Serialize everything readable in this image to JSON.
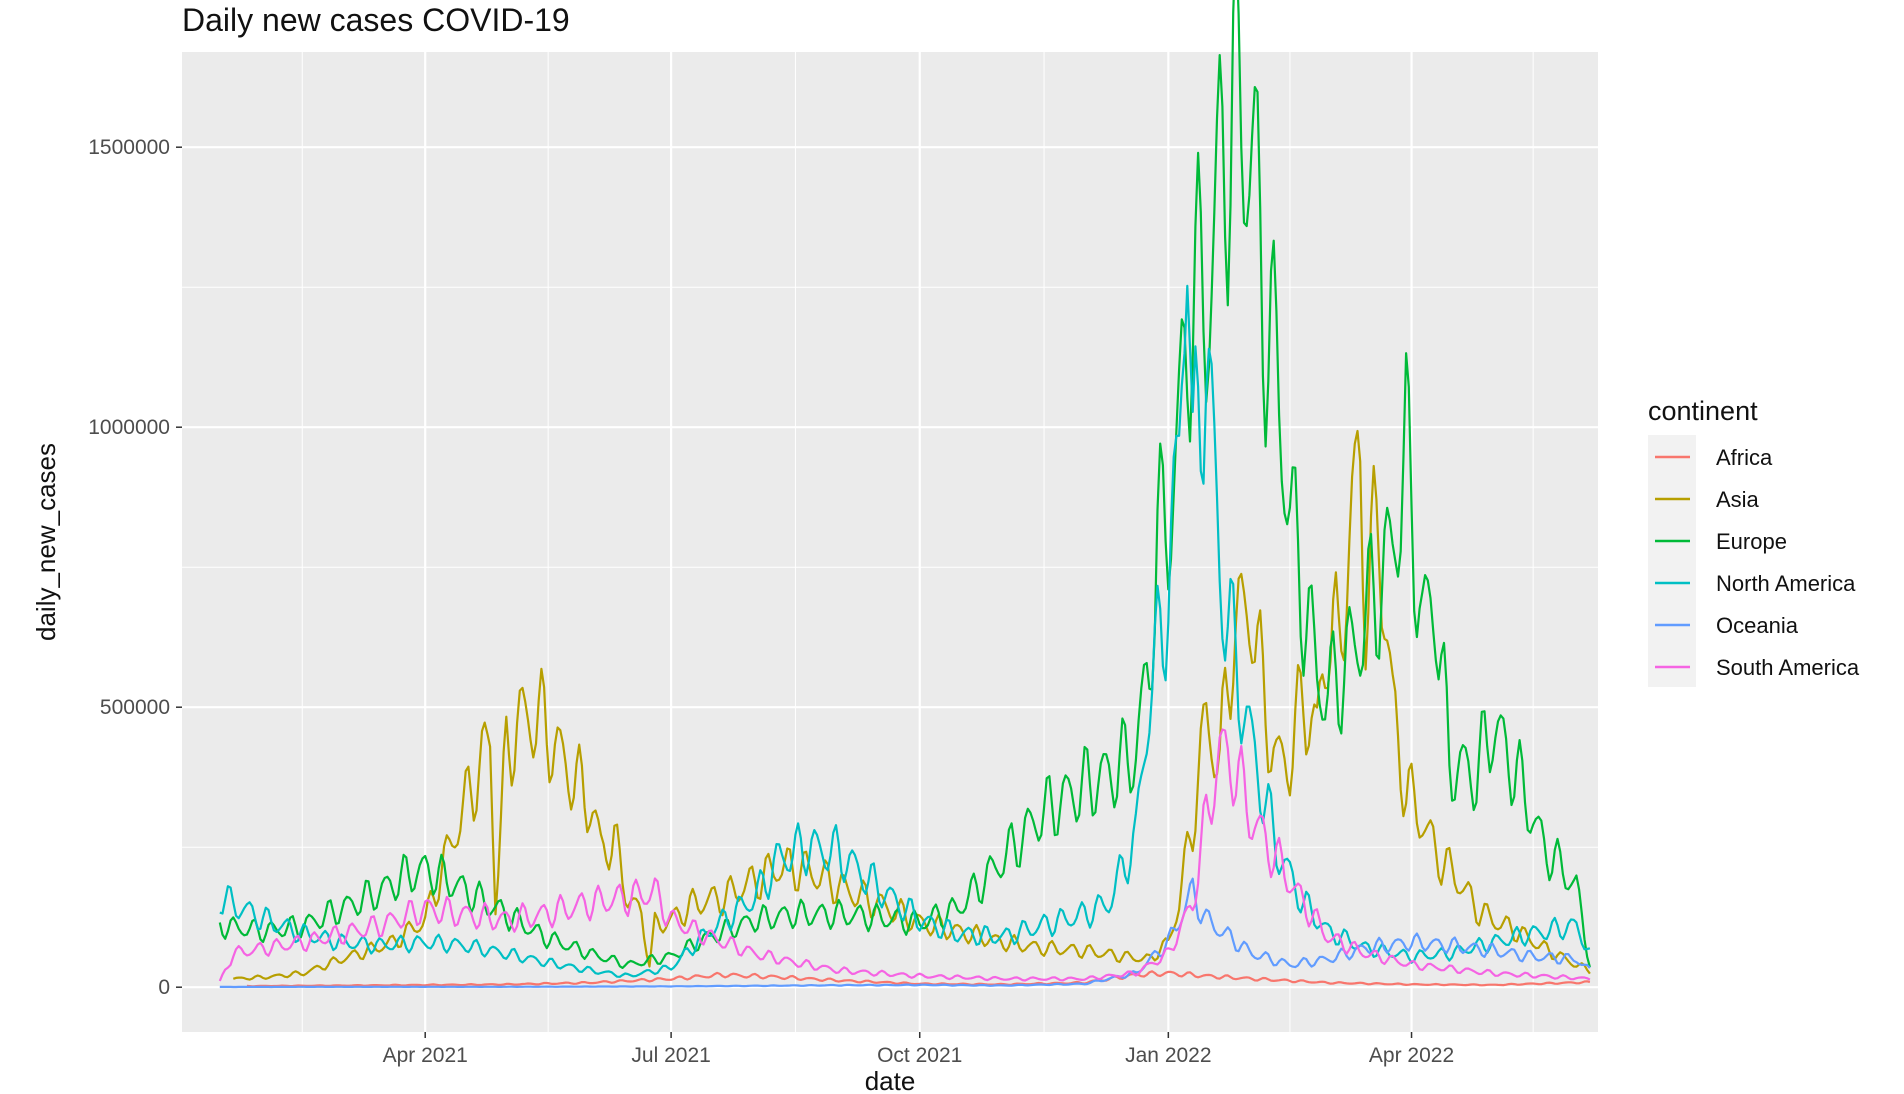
{
  "chart_data": {
    "type": "line",
    "title": "Daily new cases COVID-19",
    "xlabel": "date",
    "ylabel": "daily_new_cases",
    "x_range": [
      "2021-01-01",
      "2022-06-09"
    ],
    "ylim": [
      -80000,
      1670000
    ],
    "x_ticks": [
      {
        "date": "2021-04-01",
        "label": "Apr 2021"
      },
      {
        "date": "2021-07-01",
        "label": "Jul 2021"
      },
      {
        "date": "2021-10-01",
        "label": "Oct 2021"
      },
      {
        "date": "2022-01-01",
        "label": "Jan 2022"
      },
      {
        "date": "2022-04-01",
        "label": "Apr 2022"
      }
    ],
    "y_ticks": [
      {
        "value": 0,
        "label": "0"
      },
      {
        "value": 500000,
        "label": "500000"
      },
      {
        "value": 1000000,
        "label": "1000000"
      },
      {
        "value": 1500000,
        "label": "1500000"
      }
    ],
    "grid": true,
    "legend": {
      "title": "continent",
      "position": "right"
    },
    "series": [
      {
        "name": "Africa",
        "color": "#F8766D",
        "points": [
          [
            "2021-01-25",
            2000
          ],
          [
            "2021-03-01",
            3000
          ],
          [
            "2021-04-01",
            4000
          ],
          [
            "2021-05-01",
            5000
          ],
          [
            "2021-06-01",
            8000
          ],
          [
            "2021-07-01",
            15000
          ],
          [
            "2021-07-20",
            22000
          ],
          [
            "2021-08-10",
            18000
          ],
          [
            "2021-09-01",
            12000
          ],
          [
            "2021-10-01",
            6000
          ],
          [
            "2021-11-01",
            5000
          ],
          [
            "2021-12-01",
            8000
          ],
          [
            "2021-12-20",
            22000
          ],
          [
            "2022-01-01",
            25000
          ],
          [
            "2022-01-15",
            20000
          ],
          [
            "2022-02-01",
            15000
          ],
          [
            "2022-03-01",
            8000
          ],
          [
            "2022-04-01",
            5000
          ],
          [
            "2022-05-01",
            4000
          ],
          [
            "2022-06-06",
            9000
          ]
        ]
      },
      {
        "name": "Asia",
        "color": "#B79F00",
        "points": [
          [
            "2021-01-20",
            15000
          ],
          [
            "2021-02-01",
            18000
          ],
          [
            "2021-02-15",
            25000
          ],
          [
            "2021-03-01",
            50000
          ],
          [
            "2021-03-20",
            80000
          ],
          [
            "2021-04-01",
            120000
          ],
          [
            "2021-04-10",
            250000
          ],
          [
            "2021-04-20",
            380000
          ],
          [
            "2021-04-25",
            440000
          ],
          [
            "2021-04-27",
            150000
          ],
          [
            "2021-05-01",
            420000
          ],
          [
            "2021-05-05",
            470000
          ],
          [
            "2021-05-10",
            485000
          ],
          [
            "2021-05-15",
            470000
          ],
          [
            "2021-05-20",
            420000
          ],
          [
            "2021-05-25",
            380000
          ],
          [
            "2021-06-01",
            330000
          ],
          [
            "2021-06-05",
            250000
          ],
          [
            "2021-06-10",
            260000
          ],
          [
            "2021-06-15",
            160000
          ],
          [
            "2021-06-20",
            130000
          ],
          [
            "2021-06-23",
            40000
          ],
          [
            "2021-06-25",
            110000
          ],
          [
            "2021-07-01",
            120000
          ],
          [
            "2021-07-10",
            150000
          ],
          [
            "2021-07-20",
            160000
          ],
          [
            "2021-08-01",
            190000
          ],
          [
            "2021-08-10",
            215000
          ],
          [
            "2021-08-20",
            210000
          ],
          [
            "2021-09-01",
            180000
          ],
          [
            "2021-09-10",
            160000
          ],
          [
            "2021-09-20",
            140000
          ],
          [
            "2021-10-01",
            115000
          ],
          [
            "2021-10-15",
            100000
          ],
          [
            "2021-11-01",
            80000
          ],
          [
            "2021-11-15",
            70000
          ],
          [
            "2021-12-01",
            65000
          ],
          [
            "2021-12-15",
            55000
          ],
          [
            "2021-12-25",
            50000
          ],
          [
            "2022-01-01",
            80000
          ],
          [
            "2022-01-05",
            150000
          ],
          [
            "2022-01-10",
            300000
          ],
          [
            "2022-01-15",
            480000
          ],
          [
            "2022-01-20",
            400000
          ],
          [
            "2022-01-25",
            640000
          ],
          [
            "2022-02-01",
            680000
          ],
          [
            "2022-02-05",
            520000
          ],
          [
            "2022-02-10",
            400000
          ],
          [
            "2022-02-15",
            410000
          ],
          [
            "2022-02-20",
            520000
          ],
          [
            "2022-02-25",
            450000
          ],
          [
            "2022-03-01",
            650000
          ],
          [
            "2022-03-05",
            600000
          ],
          [
            "2022-03-10",
            850000
          ],
          [
            "2022-03-13",
            920000
          ],
          [
            "2022-03-15",
            700000
          ],
          [
            "2022-03-20",
            820000
          ],
          [
            "2022-03-25",
            500000
          ],
          [
            "2022-03-30",
            350000
          ],
          [
            "2022-04-05",
            300000
          ],
          [
            "2022-04-10",
            240000
          ],
          [
            "2022-04-15",
            210000
          ],
          [
            "2022-04-20",
            180000
          ],
          [
            "2022-04-25",
            140000
          ],
          [
            "2022-05-01",
            120000
          ],
          [
            "2022-05-10",
            100000
          ],
          [
            "2022-05-20",
            70000
          ],
          [
            "2022-06-01",
            40000
          ],
          [
            "2022-06-06",
            30000
          ]
        ]
      },
      {
        "name": "Europe",
        "color": "#00BA38",
        "points": [
          [
            "2021-01-15",
            110000
          ],
          [
            "2021-02-01",
            100000
          ],
          [
            "2021-02-15",
            110000
          ],
          [
            "2021-03-01",
            140000
          ],
          [
            "2021-03-15",
            170000
          ],
          [
            "2021-03-25",
            200000
          ],
          [
            "2021-04-01",
            210000
          ],
          [
            "2021-04-10",
            190000
          ],
          [
            "2021-04-20",
            160000
          ],
          [
            "2021-05-01",
            130000
          ],
          [
            "2021-05-15",
            90000
          ],
          [
            "2021-06-01",
            60000
          ],
          [
            "2021-06-15",
            40000
          ],
          [
            "2021-07-01",
            55000
          ],
          [
            "2021-07-15",
            90000
          ],
          [
            "2021-08-01",
            120000
          ],
          [
            "2021-08-15",
            130000
          ],
          [
            "2021-09-01",
            130000
          ],
          [
            "2021-09-15",
            125000
          ],
          [
            "2021-10-01",
            115000
          ],
          [
            "2021-10-15",
            140000
          ],
          [
            "2021-11-01",
            230000
          ],
          [
            "2021-11-15",
            310000
          ],
          [
            "2021-12-01",
            360000
          ],
          [
            "2021-12-10",
            380000
          ],
          [
            "2021-12-20",
            420000
          ],
          [
            "2021-12-25",
            580000
          ],
          [
            "2021-12-28",
            800000
          ],
          [
            "2022-01-01",
            830000
          ],
          [
            "2022-01-05",
            1000000
          ],
          [
            "2022-01-10",
            1270000
          ],
          [
            "2022-01-15",
            1200000
          ],
          [
            "2022-01-20",
            1450000
          ],
          [
            "2022-01-25",
            1590000
          ],
          [
            "2022-02-01",
            1500000
          ],
          [
            "2022-02-05",
            1250000
          ],
          [
            "2022-02-10",
            1100000
          ],
          [
            "2022-02-15",
            850000
          ],
          [
            "2022-02-20",
            700000
          ],
          [
            "2022-02-25",
            560000
          ],
          [
            "2022-03-01",
            520000
          ],
          [
            "2022-03-10",
            600000
          ],
          [
            "2022-03-20",
            720000
          ],
          [
            "2022-03-25",
            780000
          ],
          [
            "2022-03-30",
            960000
          ],
          [
            "2022-04-05",
            650000
          ],
          [
            "2022-04-10",
            690000
          ],
          [
            "2022-04-15",
            400000
          ],
          [
            "2022-04-25",
            380000
          ],
          [
            "2022-05-01",
            470000
          ],
          [
            "2022-05-10",
            380000
          ],
          [
            "2022-05-20",
            250000
          ],
          [
            "2022-06-01",
            180000
          ],
          [
            "2022-06-06",
            40000
          ]
        ]
      },
      {
        "name": "North America",
        "color": "#00BFC4",
        "points": [
          [
            "2021-01-15",
            160000
          ],
          [
            "2021-02-01",
            120000
          ],
          [
            "2021-02-15",
            95000
          ],
          [
            "2021-03-01",
            80000
          ],
          [
            "2021-03-15",
            75000
          ],
          [
            "2021-04-01",
            80000
          ],
          [
            "2021-04-15",
            75000
          ],
          [
            "2021-05-01",
            60000
          ],
          [
            "2021-05-15",
            45000
          ],
          [
            "2021-06-01",
            30000
          ],
          [
            "2021-06-15",
            20000
          ],
          [
            "2021-07-01",
            35000
          ],
          [
            "2021-07-15",
            100000
          ],
          [
            "2021-08-01",
            160000
          ],
          [
            "2021-08-10",
            230000
          ],
          [
            "2021-08-20",
            250000
          ],
          [
            "2021-09-01",
            240000
          ],
          [
            "2021-09-15",
            180000
          ],
          [
            "2021-10-01",
            120000
          ],
          [
            "2021-10-15",
            95000
          ],
          [
            "2021-11-01",
            90000
          ],
          [
            "2021-11-15",
            110000
          ],
          [
            "2021-12-01",
            130000
          ],
          [
            "2021-12-10",
            150000
          ],
          [
            "2021-12-20",
            270000
          ],
          [
            "2021-12-25",
            520000
          ],
          [
            "2021-12-30",
            650000
          ],
          [
            "2022-01-01",
            720000
          ],
          [
            "2022-01-05",
            950000
          ],
          [
            "2022-01-08",
            1460000
          ],
          [
            "2022-01-10",
            900000
          ],
          [
            "2022-01-15",
            1160000
          ],
          [
            "2022-01-20",
            750000
          ],
          [
            "2022-01-25",
            600000
          ],
          [
            "2022-02-01",
            430000
          ],
          [
            "2022-02-10",
            250000
          ],
          [
            "2022-02-20",
            150000
          ],
          [
            "2022-03-01",
            100000
          ],
          [
            "2022-03-15",
            70000
          ],
          [
            "2022-04-01",
            55000
          ],
          [
            "2022-04-15",
            60000
          ],
          [
            "2022-05-01",
            80000
          ],
          [
            "2022-05-15",
            95000
          ],
          [
            "2022-06-01",
            110000
          ],
          [
            "2022-06-06",
            60000
          ]
        ]
      },
      {
        "name": "Oceania",
        "color": "#619CFF",
        "points": [
          [
            "2021-01-15",
            500
          ],
          [
            "2021-03-01",
            600
          ],
          [
            "2021-05-01",
            700
          ],
          [
            "2021-07-01",
            1500
          ],
          [
            "2021-08-01",
            2500
          ],
          [
            "2021-09-01",
            3500
          ],
          [
            "2021-10-01",
            4000
          ],
          [
            "2021-11-01",
            3000
          ],
          [
            "2021-12-01",
            6000
          ],
          [
            "2021-12-20",
            25000
          ],
          [
            "2022-01-01",
            80000
          ],
          [
            "2022-01-10",
            170000
          ],
          [
            "2022-01-15",
            120000
          ],
          [
            "2022-02-01",
            60000
          ],
          [
            "2022-02-15",
            40000
          ],
          [
            "2022-03-01",
            50000
          ],
          [
            "2022-03-15",
            70000
          ],
          [
            "2022-04-01",
            80000
          ],
          [
            "2022-04-15",
            75000
          ],
          [
            "2022-05-01",
            65000
          ],
          [
            "2022-05-15",
            55000
          ],
          [
            "2022-06-01",
            50000
          ],
          [
            "2022-06-06",
            30000
          ]
        ]
      },
      {
        "name": "South America",
        "color": "#F564E3",
        "points": [
          [
            "2021-01-15",
            10000
          ],
          [
            "2021-01-20",
            60000
          ],
          [
            "2021-02-01",
            70000
          ],
          [
            "2021-02-15",
            80000
          ],
          [
            "2021-03-01",
            95000
          ],
          [
            "2021-03-15",
            110000
          ],
          [
            "2021-04-01",
            140000
          ],
          [
            "2021-04-15",
            130000
          ],
          [
            "2021-05-01",
            120000
          ],
          [
            "2021-05-15",
            130000
          ],
          [
            "2021-06-01",
            150000
          ],
          [
            "2021-06-15",
            160000
          ],
          [
            "2021-06-25",
            170000
          ],
          [
            "2021-07-01",
            120000
          ],
          [
            "2021-07-15",
            90000
          ],
          [
            "2021-08-01",
            60000
          ],
          [
            "2021-08-15",
            45000
          ],
          [
            "2021-09-01",
            30000
          ],
          [
            "2021-09-15",
            25000
          ],
          [
            "2021-10-01",
            20000
          ],
          [
            "2021-11-01",
            15000
          ],
          [
            "2021-12-01",
            15000
          ],
          [
            "2021-12-20",
            25000
          ],
          [
            "2022-01-01",
            60000
          ],
          [
            "2022-01-10",
            150000
          ],
          [
            "2022-01-15",
            300000
          ],
          [
            "2022-01-20",
            420000
          ],
          [
            "2022-01-25",
            400000
          ],
          [
            "2022-02-01",
            300000
          ],
          [
            "2022-02-10",
            230000
          ],
          [
            "2022-02-20",
            150000
          ],
          [
            "2022-03-01",
            90000
          ],
          [
            "2022-03-15",
            60000
          ],
          [
            "2022-04-01",
            40000
          ],
          [
            "2022-05-01",
            25000
          ],
          [
            "2022-06-06",
            15000
          ]
        ]
      }
    ]
  }
}
